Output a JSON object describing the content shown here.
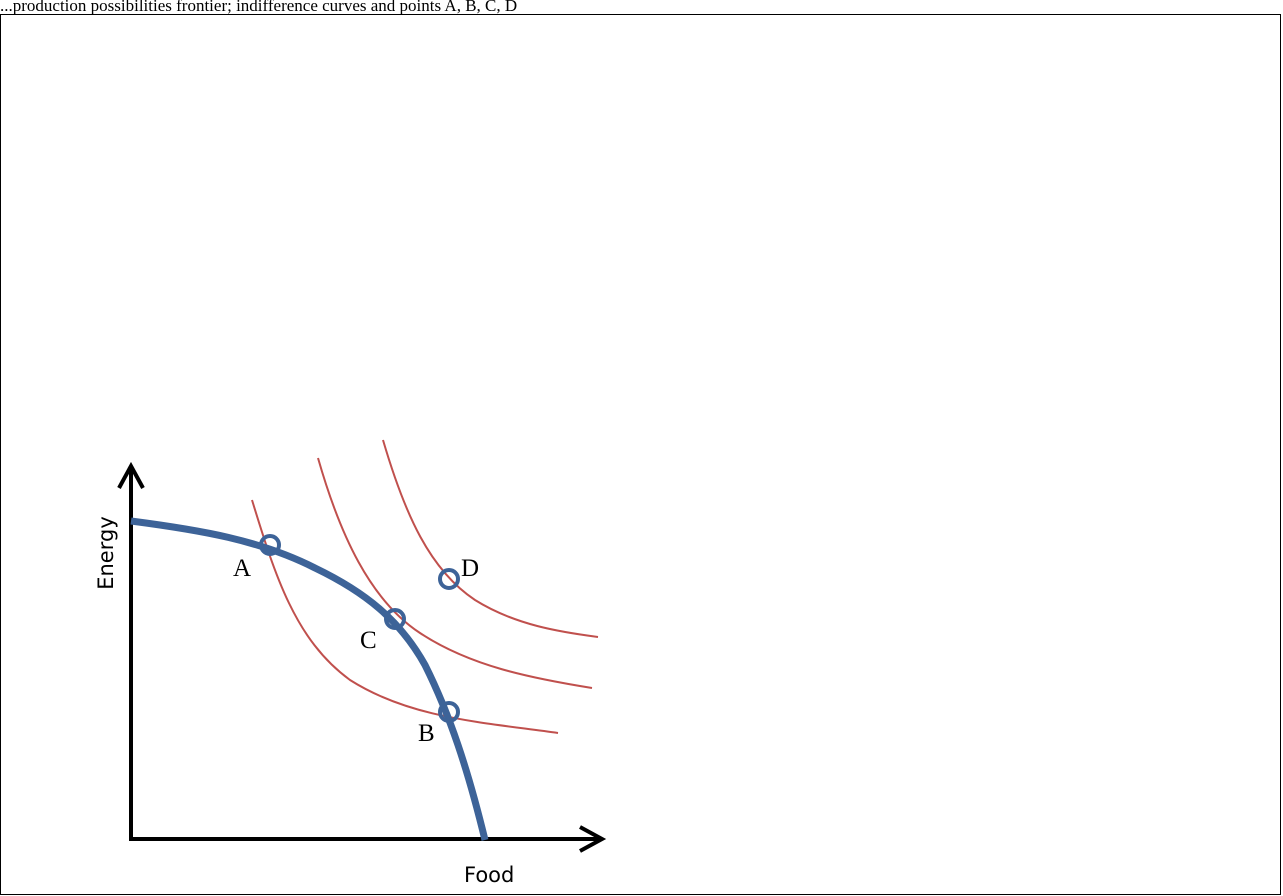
{
  "header_text": "...production possibilities frontier; indifference curves and points A, B, C, D",
  "diagram": {
    "axes": {
      "x_label": "Food",
      "y_label": "Energy"
    },
    "points": [
      {
        "id": "A",
        "label": "A",
        "on": "frontier"
      },
      {
        "id": "B",
        "label": "B",
        "on": "frontier"
      },
      {
        "id": "C",
        "label": "C",
        "on": "frontier"
      },
      {
        "id": "D",
        "label": "D",
        "on": "outside-frontier"
      }
    ],
    "colors": {
      "frontier": "#3d6398",
      "indifference": "#c0504d",
      "axes": "#000000"
    }
  }
}
